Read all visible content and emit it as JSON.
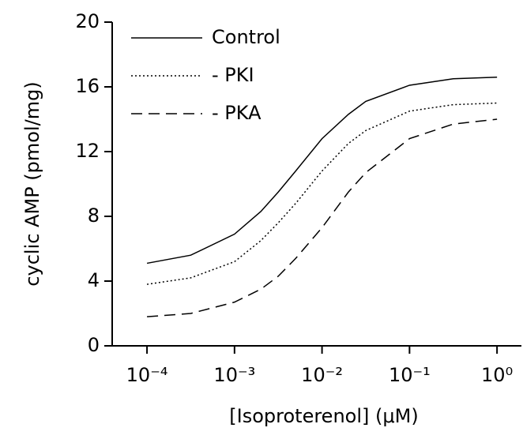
{
  "chart_data": {
    "type": "line",
    "x_label": "[Isoproterenol] (μM)",
    "y_label": "cyclic AMP (pmol/mg)",
    "x_scale": "log",
    "x": [
      0.0001,
      0.000316,
      0.001,
      0.002,
      0.00316,
      0.005,
      0.01,
      0.02,
      0.0316,
      0.1,
      0.316,
      1
    ],
    "series": [
      {
        "name": "Control",
        "color": "#000000",
        "dash": "solid",
        "values": [
          5.1,
          5.6,
          6.9,
          8.3,
          9.5,
          10.8,
          12.8,
          14.3,
          15.1,
          16.1,
          16.5,
          16.6
        ]
      },
      {
        "name": "- PKI",
        "color": "#000000",
        "dash": "dotted",
        "values": [
          3.8,
          4.2,
          5.2,
          6.5,
          7.6,
          8.8,
          10.8,
          12.5,
          13.3,
          14.5,
          14.9,
          15.0
        ]
      },
      {
        "name": "- PKA",
        "color": "#000000",
        "dash": "dashed",
        "values": [
          1.8,
          2.0,
          2.7,
          3.5,
          4.3,
          5.4,
          7.3,
          9.5,
          10.7,
          12.8,
          13.7,
          14.0
        ]
      }
    ],
    "xlim": [
      4e-05,
      1.9
    ],
    "ylim": [
      0,
      20
    ],
    "xticks": [
      {
        "value": 0.0001,
        "label": "10⁻⁴"
      },
      {
        "value": 0.001,
        "label": "10⁻³"
      },
      {
        "value": 0.01,
        "label": "10⁻²"
      },
      {
        "value": 0.1,
        "label": "10⁻¹"
      },
      {
        "value": 1,
        "label": "10⁰"
      }
    ],
    "yticks": [
      0,
      4,
      8,
      12,
      16,
      20
    ],
    "grid": false,
    "legend": "upper-left"
  }
}
